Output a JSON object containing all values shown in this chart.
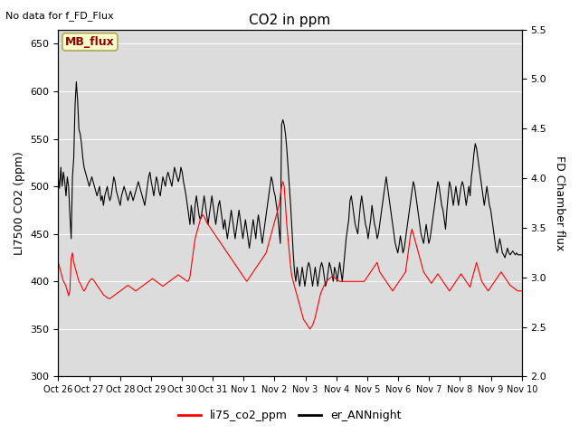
{
  "title": "CO2 in ppm",
  "top_left_text": "No data for f_FD_Flux",
  "ylabel_left": "LI7500 CO2 (ppm)",
  "ylabel_right": "FD Chamber flux",
  "ylim_left": [
    300,
    665
  ],
  "ylim_right": [
    2.0,
    5.5
  ],
  "yticks_left": [
    300,
    350,
    400,
    450,
    500,
    550,
    600,
    650
  ],
  "yticks_right": [
    2.0,
    2.5,
    3.0,
    3.5,
    4.0,
    4.5,
    5.0,
    5.5
  ],
  "xtick_labels": [
    "Oct 26",
    "Oct 27",
    "Oct 28",
    "Oct 29",
    "Oct 30",
    "Oct 31",
    "Nov 1",
    "Nov 2",
    "Nov 3",
    "Nov 4",
    "Nov 5",
    "Nov 6",
    "Nov 7",
    "Nov 8",
    "Nov 9",
    "Nov 10"
  ],
  "legend_entries": [
    "li75_co2_ppm",
    "er_ANNnight"
  ],
  "legend_colors": [
    "red",
    "black"
  ],
  "annotation_box": "MB_flux",
  "plot_bg_color": "#dcdcdc",
  "red_line_color": "#ff0000",
  "black_line_color": "#000000",
  "linewidth": 0.8,
  "red_data": [
    420,
    415,
    410,
    405,
    400,
    398,
    395,
    390,
    385,
    390,
    425,
    430,
    420,
    415,
    410,
    405,
    400,
    398,
    395,
    392,
    390,
    392,
    395,
    398,
    400,
    402,
    403,
    402,
    400,
    398,
    396,
    394,
    392,
    390,
    388,
    386,
    385,
    384,
    383,
    382,
    382,
    383,
    384,
    385,
    386,
    387,
    388,
    389,
    390,
    391,
    392,
    393,
    394,
    395,
    396,
    395,
    394,
    393,
    392,
    391,
    390,
    391,
    392,
    393,
    394,
    395,
    396,
    397,
    398,
    399,
    400,
    401,
    402,
    403,
    402,
    401,
    400,
    399,
    398,
    397,
    396,
    395,
    396,
    397,
    398,
    399,
    400,
    401,
    402,
    403,
    404,
    405,
    406,
    407,
    406,
    405,
    404,
    403,
    402,
    401,
    400,
    401,
    405,
    415,
    425,
    435,
    445,
    450,
    455,
    460,
    465,
    468,
    470,
    468,
    465,
    462,
    460,
    458,
    456,
    454,
    452,
    450,
    448,
    446,
    444,
    442,
    440,
    438,
    436,
    434,
    432,
    430,
    428,
    426,
    424,
    422,
    420,
    418,
    416,
    414,
    412,
    410,
    408,
    406,
    404,
    402,
    400,
    402,
    404,
    406,
    408,
    410,
    412,
    414,
    416,
    418,
    420,
    422,
    424,
    426,
    428,
    430,
    435,
    440,
    445,
    450,
    455,
    460,
    465,
    470,
    475,
    480,
    490,
    500,
    505,
    500,
    480,
    460,
    445,
    430,
    415,
    405,
    400,
    395,
    390,
    385,
    380,
    375,
    370,
    365,
    360,
    358,
    356,
    354,
    352,
    350,
    352,
    354,
    358,
    362,
    368,
    374,
    380,
    386,
    390,
    393,
    396,
    398,
    400,
    402,
    403,
    404,
    405,
    405,
    404,
    403,
    402,
    401,
    400,
    400,
    400,
    400,
    400,
    400,
    400,
    400,
    400,
    400,
    400,
    400,
    400,
    400,
    400,
    400,
    400,
    400,
    400,
    400,
    402,
    404,
    406,
    408,
    410,
    412,
    414,
    416,
    418,
    420,
    415,
    410,
    408,
    406,
    404,
    402,
    400,
    398,
    396,
    394,
    392,
    390,
    392,
    394,
    396,
    398,
    400,
    402,
    404,
    406,
    408,
    410,
    420,
    430,
    440,
    450,
    455,
    450,
    445,
    440,
    435,
    430,
    425,
    420,
    415,
    410,
    408,
    406,
    404,
    402,
    400,
    398,
    400,
    402,
    404,
    406,
    408,
    406,
    404,
    402,
    400,
    398,
    396,
    394,
    392,
    390,
    392,
    394,
    396,
    398,
    400,
    402,
    404,
    406,
    408,
    406,
    404,
    402,
    400,
    398,
    396,
    394,
    400,
    405,
    410,
    415,
    420,
    415,
    410,
    405,
    400,
    398,
    396,
    394,
    392,
    390,
    392,
    394,
    396,
    398,
    400,
    402,
    404,
    406,
    408,
    410,
    408,
    406,
    404,
    402,
    400,
    398,
    396,
    395,
    394,
    393,
    392,
    391,
    390,
    390,
    390,
    390
  ],
  "black_data": [
    510,
    498,
    520,
    500,
    515,
    505,
    490,
    510,
    500,
    470,
    445,
    510,
    530,
    585,
    610,
    590,
    560,
    555,
    545,
    530,
    520,
    515,
    510,
    505,
    500,
    505,
    510,
    505,
    500,
    495,
    490,
    495,
    500,
    485,
    490,
    480,
    490,
    495,
    500,
    490,
    485,
    490,
    500,
    510,
    505,
    495,
    490,
    485,
    480,
    490,
    495,
    500,
    495,
    490,
    485,
    490,
    495,
    490,
    485,
    490,
    495,
    500,
    505,
    500,
    495,
    490,
    485,
    480,
    490,
    500,
    510,
    515,
    505,
    498,
    490,
    500,
    510,
    505,
    495,
    490,
    500,
    510,
    505,
    500,
    510,
    515,
    510,
    505,
    500,
    510,
    520,
    515,
    510,
    505,
    510,
    520,
    515,
    505,
    498,
    490,
    480,
    470,
    460,
    480,
    470,
    460,
    480,
    490,
    480,
    470,
    465,
    470,
    480,
    490,
    480,
    470,
    460,
    470,
    480,
    490,
    480,
    470,
    460,
    470,
    480,
    485,
    475,
    465,
    455,
    465,
    455,
    445,
    455,
    465,
    475,
    465,
    455,
    445,
    455,
    465,
    475,
    465,
    455,
    445,
    455,
    465,
    455,
    445,
    435,
    445,
    455,
    465,
    455,
    445,
    460,
    470,
    460,
    450,
    440,
    450,
    460,
    470,
    480,
    490,
    500,
    510,
    505,
    495,
    490,
    480,
    470,
    455,
    440,
    565,
    570,
    565,
    555,
    540,
    520,
    500,
    480,
    455,
    430,
    410,
    400,
    415,
    405,
    395,
    405,
    415,
    405,
    395,
    405,
    415,
    420,
    415,
    405,
    395,
    405,
    415,
    405,
    395,
    405,
    415,
    420,
    415,
    405,
    395,
    400,
    410,
    420,
    415,
    408,
    400,
    415,
    410,
    400,
    410,
    420,
    410,
    400,
    415,
    430,
    445,
    455,
    465,
    485,
    490,
    480,
    470,
    460,
    455,
    450,
    465,
    480,
    490,
    480,
    470,
    460,
    455,
    445,
    455,
    465,
    480,
    470,
    460,
    455,
    445,
    450,
    460,
    470,
    480,
    490,
    500,
    510,
    500,
    490,
    480,
    470,
    460,
    450,
    440,
    435,
    430,
    438,
    448,
    440,
    430,
    435,
    445,
    455,
    465,
    475,
    485,
    495,
    505,
    500,
    490,
    480,
    470,
    460,
    450,
    445,
    440,
    450,
    460,
    450,
    440,
    445,
    455,
    465,
    475,
    485,
    495,
    505,
    500,
    490,
    480,
    475,
    465,
    455,
    475,
    490,
    505,
    500,
    490,
    480,
    490,
    500,
    490,
    480,
    490,
    500,
    505,
    500,
    490,
    480,
    490,
    500,
    490,
    510,
    520,
    535,
    545,
    540,
    530,
    520,
    510,
    500,
    490,
    480,
    490,
    500,
    490,
    480,
    475,
    465,
    455,
    445,
    435,
    430,
    438,
    445,
    438,
    430,
    428,
    425,
    430,
    435,
    430,
    428,
    430,
    432,
    430,
    428,
    430,
    428,
    428,
    428,
    428
  ]
}
